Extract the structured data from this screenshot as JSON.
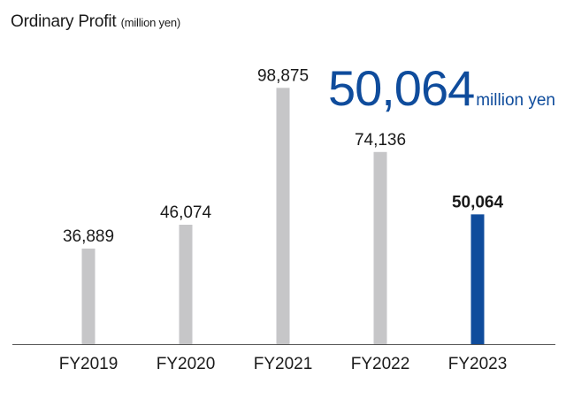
{
  "title": {
    "main": "Ordinary Profit",
    "unit": "(million yen)"
  },
  "headline": {
    "value": "50,064",
    "unit": "million yen"
  },
  "colors": {
    "default_bar": "#c6c6c8",
    "highlight_bar": "#0f4c9c",
    "baseline": "#555555",
    "text": "#1a1a1a"
  },
  "chart_data": {
    "type": "bar",
    "categories": [
      "FY2019",
      "FY2020",
      "FY2021",
      "FY2022",
      "FY2023"
    ],
    "values": [
      36889,
      46074,
      98875,
      74136,
      50064
    ],
    "value_labels": [
      "36,889",
      "46,074",
      "98,875",
      "74,136",
      "50,064"
    ],
    "highlight_index": 4,
    "title": "Ordinary Profit",
    "ylabel": "",
    "xlabel": "",
    "ylim": [
      0,
      100000
    ],
    "grid": false,
    "legend": "none"
  }
}
